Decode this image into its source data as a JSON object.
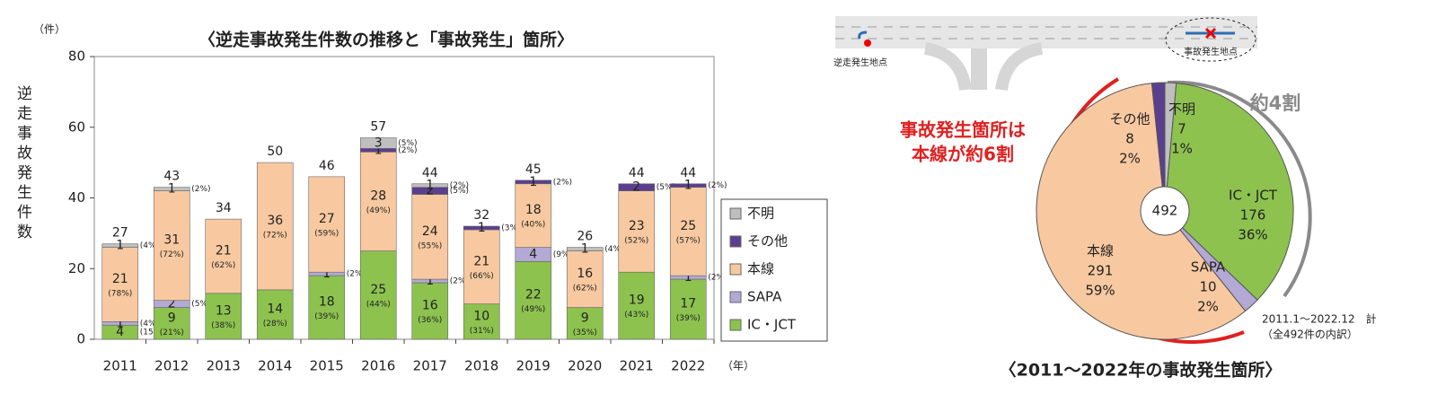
{
  "diagram": {
    "labels": [
      "逆走発生地点",
      "事故発生地点"
    ]
  },
  "chart_data": [
    {
      "type": "bar",
      "stacked": true,
      "title": "〈逆走事故発生件数の推移と「事故発生」箇所〉",
      "y_label": "逆走事故発生件数",
      "y_unit": "（件）",
      "x_unit": "（年）",
      "categories": [
        "2011",
        "2012",
        "2013",
        "2014",
        "2015",
        "2016",
        "2017",
        "2018",
        "2019",
        "2020",
        "2021",
        "2022"
      ],
      "series": [
        {
          "name": "IC・JCT",
          "color": "#8dc24f",
          "values": [
            4,
            9,
            13,
            14,
            18,
            25,
            16,
            10,
            22,
            9,
            19,
            17
          ],
          "share_labels": [
            "(15%)",
            "(21%)",
            "(38%)",
            "(28%)",
            "(39%)",
            "(44%)",
            "(36%)",
            "(31%)",
            "(49%)",
            "(35%)",
            "(43%)",
            "(39%)"
          ]
        },
        {
          "name": "SAPA",
          "color": "#b3a9d4",
          "values": [
            1,
            2,
            null,
            null,
            1,
            null,
            1,
            null,
            4,
            null,
            null,
            1
          ],
          "share_labels": [
            "(4%)",
            "(5%)",
            null,
            null,
            "(2%)",
            null,
            "(2%)",
            null,
            "(9%)",
            null,
            null,
            "(2%)"
          ]
        },
        {
          "name": "本線",
          "color": "#f8c9a0",
          "values": [
            21,
            31,
            21,
            36,
            27,
            28,
            24,
            21,
            18,
            16,
            23,
            25
          ],
          "share_labels": [
            "(78%)",
            "(72%)",
            "(62%)",
            "(72%)",
            "(59%)",
            "(49%)",
            "(55%)",
            "(66%)",
            "(40%)",
            "(62%)",
            "(52%)",
            "(57%)"
          ]
        },
        {
          "name": "その他",
          "color": "#5b3f8f",
          "values": [
            null,
            null,
            null,
            null,
            null,
            1,
            2,
            1,
            1,
            null,
            2,
            1
          ],
          "share_labels": [
            null,
            null,
            null,
            null,
            null,
            "(2%)",
            "(5%)",
            "(3%)",
            "(2%)",
            null,
            "(5%)",
            "(2%)"
          ]
        },
        {
          "name": "不明",
          "color": "#bfbfbf",
          "values": [
            1,
            1,
            null,
            null,
            null,
            3,
            1,
            null,
            null,
            1,
            null,
            null
          ],
          "share_labels": [
            "(4%)",
            "(2%)",
            null,
            null,
            null,
            "(5%)",
            "(2%)",
            null,
            null,
            "(4%)",
            null,
            null
          ]
        }
      ],
      "totals": [
        27,
        43,
        34,
        50,
        46,
        57,
        44,
        32,
        45,
        26,
        44,
        44
      ],
      "ylim": [
        0,
        80
      ],
      "yticks": [
        0,
        20,
        40,
        60,
        80
      ],
      "legend_order": [
        "不明",
        "その他",
        "本線",
        "SAPA",
        "IC・JCT"
      ],
      "legend": "right"
    },
    {
      "type": "pie",
      "title": "〈2011～2022年の事故発生箇所〉",
      "center_label": 492,
      "categories": [
        "不明",
        "IC・JCT",
        "SAPA",
        "本線",
        "その他"
      ],
      "values": [
        7,
        176,
        10,
        291,
        8
      ],
      "percent_labels": [
        "1%",
        "36%",
        "2%",
        "59%",
        "2%"
      ],
      "colors": [
        "#bfbfbf",
        "#8dc24f",
        "#b3a9d4",
        "#f8c9a0",
        "#5b3f8f"
      ],
      "annotations": {
        "main_line": [
          "事故発生箇所は",
          "本線が約6割"
        ],
        "other": "約4割",
        "note": [
          "2011.1～2022.12　計",
          "（全492件の内訳）"
        ]
      }
    }
  ]
}
